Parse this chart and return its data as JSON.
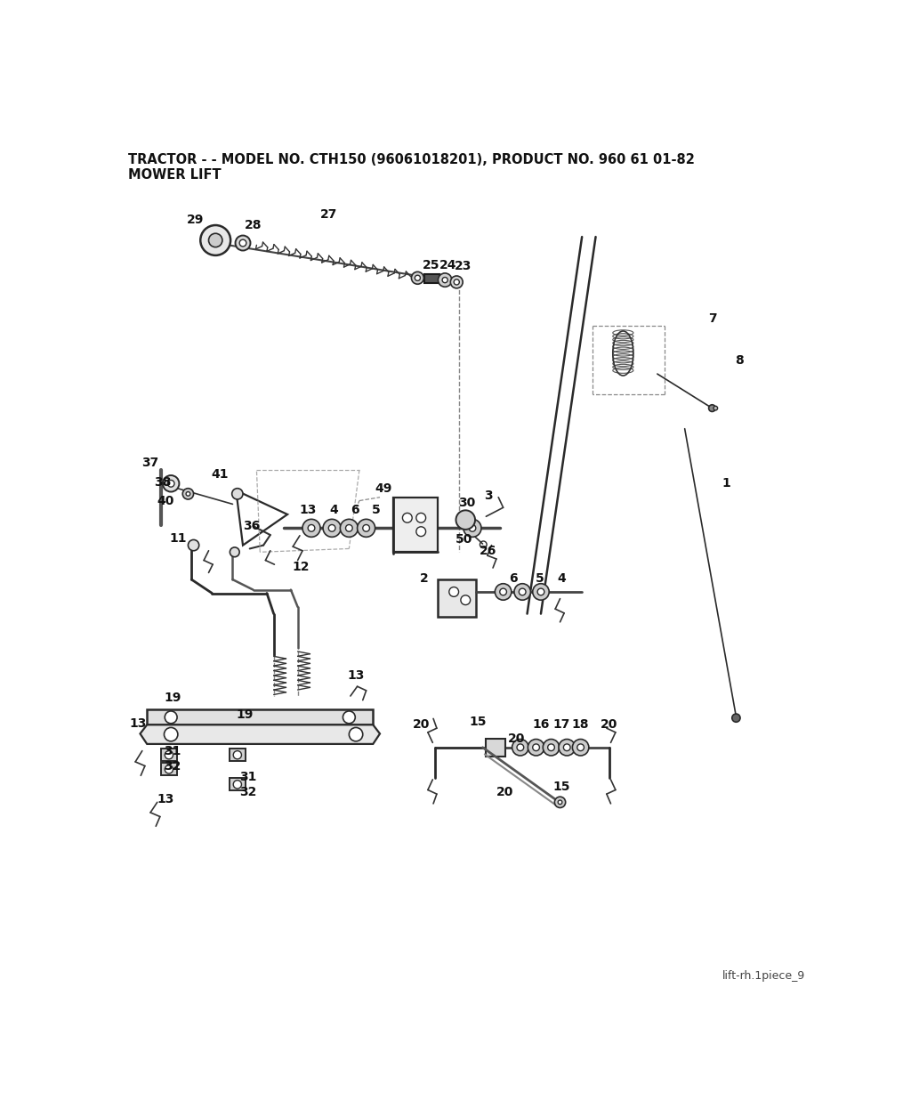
{
  "title_line1": "TRACTOR - - MODEL NO. CTH150 (96061018201), PRODUCT NO. 960 61 01-82",
  "title_line2": "MOWER LIFT",
  "footer": "lift-rh.1piece_9",
  "bg_color": "#ffffff",
  "fig_width": 10.24,
  "fig_height": 12.55,
  "dpi": 100,
  "title_fontsize": 10.5,
  "label_fontsize": 10,
  "footer_fontsize": 9
}
